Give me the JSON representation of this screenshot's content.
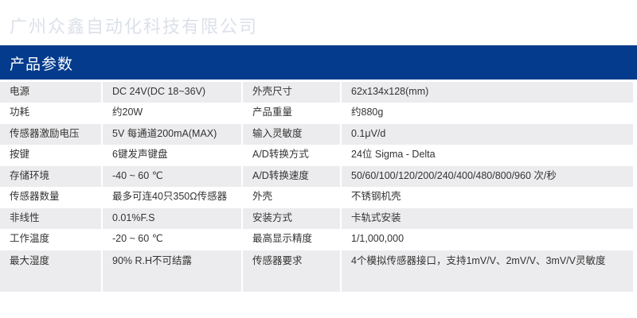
{
  "header": {
    "title": "产品参数"
  },
  "watermark": "广州众鑫自动化科技有限公司",
  "rows": [
    {
      "label1": "电源",
      "value1": "DC 24V(DC 18~36V)",
      "label2": "外壳尺寸",
      "value2": "62x134x128(mm)"
    },
    {
      "label1": "功耗",
      "value1": "约20W",
      "label2": "产品重量",
      "value2": "约880g"
    },
    {
      "label1": "传感器激励电压",
      "value1": "5V 每通道200mA(MAX)",
      "label2": "输入灵敏度",
      "value2": "0.1μV/d"
    },
    {
      "label1": "按键",
      "value1": "6键发声键盘",
      "label2": "A/D转换方式",
      "value2": "24位 Sigma - Delta"
    },
    {
      "label1": "存储环境",
      "value1": "-40 ~ 60 ℃",
      "label2": "A/D转换速度",
      "value2": "50/60/100/120/200/240/400/480/800/960 次/秒"
    },
    {
      "label1": "传感器数量",
      "value1": "最多可连40只350Ω传感器",
      "label2": "外壳",
      "value2": "不锈钢机壳"
    },
    {
      "label1": "非线性",
      "value1": "0.01%F.S",
      "label2": "安装方式",
      "value2": "卡轨式安装"
    },
    {
      "label1": "工作温度",
      "value1": "-20 ~ 60 ℃",
      "label2": "最高显示精度",
      "value2": "1/1,000,000"
    },
    {
      "label1": "最大湿度",
      "value1": "90% R.H不可结露",
      "label2": "传感器要求",
      "value2": "4个模拟传感器接口，支持1mV/V、2mV/V、3mV/V灵敏度"
    }
  ]
}
